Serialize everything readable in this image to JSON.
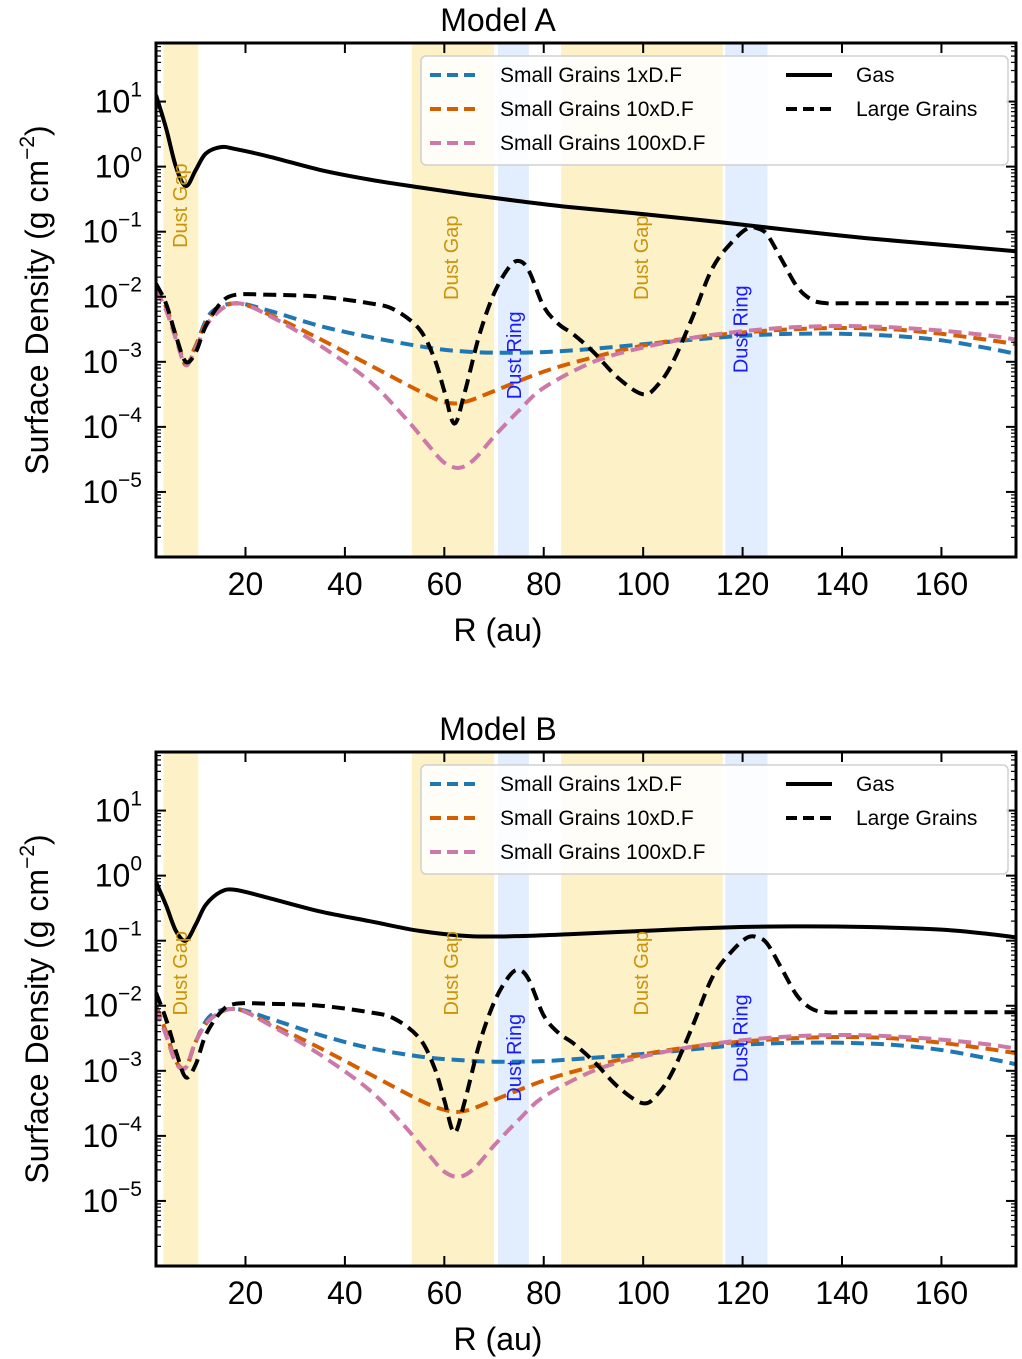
{
  "chart_data": [
    {
      "type": "line",
      "title": "Model A",
      "xlabel": "R (au)",
      "ylabel": "Surface Density (g cm$^{-2}$)",
      "ylabel_parts": {
        "main": "Surface Density (g cm",
        "exp": "−2",
        "close": ")"
      },
      "xlim": [
        2,
        175
      ],
      "ylim_log10": [
        -6.0,
        1.9
      ],
      "x_ticks": [
        20,
        40,
        60,
        80,
        100,
        120,
        140,
        160
      ],
      "y_ticks": [
        {
          "base": "10",
          "exp": "1",
          "log": 1
        },
        {
          "base": "10",
          "exp": "0",
          "log": 0
        },
        {
          "base": "10",
          "exp": "−1",
          "log": -1
        },
        {
          "base": "10",
          "exp": "−2",
          "log": -2
        },
        {
          "base": "10",
          "exp": "−3",
          "log": -3
        },
        {
          "base": "10",
          "exp": "−4",
          "log": -4
        },
        {
          "base": "10",
          "exp": "−5",
          "log": -5
        }
      ],
      "regions": [
        {
          "kind": "gap",
          "x0": 3.5,
          "x1": 10.5,
          "label": "Dust Gap",
          "label_x": 7,
          "label_log": -0.6,
          "color": "#fdf1c8"
        },
        {
          "kind": "gap",
          "x0": 53.5,
          "x1": 70.0,
          "label": "Dust Gap",
          "label_x": 61.5,
          "label_log": -1.4,
          "color": "#fdf1c8"
        },
        {
          "kind": "ring",
          "x0": 70.8,
          "x1": 77.0,
          "label": "Dust Ring",
          "label_x": 74.2,
          "label_log": -2.9,
          "color": "#e2eefd"
        },
        {
          "kind": "gap",
          "x0": 83.5,
          "x1": 116.0,
          "label": "Dust Gap",
          "label_x": 99.8,
          "label_log": -1.4,
          "color": "#fdf1c8"
        },
        {
          "kind": "ring",
          "x0": 116.5,
          "x1": 125.0,
          "label": "Dust Ring",
          "label_x": 119.8,
          "label_log": -2.5,
          "color": "#e2eefd"
        }
      ],
      "series": [
        {
          "name": "Small Grains 1xD.F",
          "color": "#1f77b4",
          "dash": "dashed",
          "x": [
            2,
            4,
            6,
            8,
            10,
            13,
            18,
            25,
            35,
            45,
            55,
            62,
            70,
            80,
            90,
            100,
            110,
            120,
            130,
            140,
            150,
            160,
            170,
            175
          ],
          "log_y": [
            -1.85,
            -2.15,
            -2.6,
            -3.05,
            -2.75,
            -2.25,
            -2.1,
            -2.22,
            -2.45,
            -2.62,
            -2.76,
            -2.83,
            -2.86,
            -2.85,
            -2.8,
            -2.73,
            -2.66,
            -2.6,
            -2.57,
            -2.57,
            -2.6,
            -2.67,
            -2.8,
            -2.88
          ]
        },
        {
          "name": "Small Grains 10xD.F",
          "color": "#d55e00",
          "dash": "dashed",
          "x": [
            2,
            4,
            6,
            8,
            10,
            13,
            18,
            25,
            35,
            45,
            55,
            60,
            64,
            70,
            80,
            90,
            100,
            110,
            120,
            130,
            140,
            150,
            160,
            170,
            175
          ],
          "log_y": [
            -1.85,
            -2.15,
            -2.6,
            -3.05,
            -2.75,
            -2.3,
            -2.1,
            -2.28,
            -2.65,
            -3.05,
            -3.45,
            -3.62,
            -3.62,
            -3.45,
            -3.15,
            -2.93,
            -2.75,
            -2.63,
            -2.55,
            -2.5,
            -2.48,
            -2.5,
            -2.57,
            -2.67,
            -2.73
          ]
        },
        {
          "name": "Small Grains 100xD.F",
          "color": "#cc79a7",
          "dash": "dashed",
          "x": [
            2,
            4,
            6,
            8,
            10,
            13,
            18,
            25,
            35,
            45,
            52,
            57,
            60,
            63,
            66,
            70,
            75,
            80,
            90,
            100,
            110,
            120,
            130,
            140,
            150,
            160,
            170,
            175
          ],
          "log_y": [
            -1.9,
            -2.2,
            -2.65,
            -3.05,
            -2.78,
            -2.35,
            -2.1,
            -2.3,
            -2.75,
            -3.3,
            -3.85,
            -4.3,
            -4.55,
            -4.63,
            -4.5,
            -4.15,
            -3.75,
            -3.4,
            -3.0,
            -2.78,
            -2.63,
            -2.53,
            -2.47,
            -2.45,
            -2.47,
            -2.52,
            -2.6,
            -2.66
          ]
        },
        {
          "name": "Gas",
          "color": "#000000",
          "dash": "solid",
          "x": [
            2,
            4,
            6,
            8,
            10,
            12,
            15,
            18,
            25,
            35,
            45,
            55,
            65,
            75,
            85,
            100,
            115,
            130,
            145,
            160,
            175
          ],
          "log_y": [
            1.1,
            0.6,
            0.0,
            -0.3,
            -0.05,
            0.2,
            0.3,
            0.27,
            0.15,
            -0.05,
            -0.2,
            -0.32,
            -0.43,
            -0.53,
            -0.62,
            -0.73,
            -0.85,
            -0.98,
            -1.1,
            -1.2,
            -1.3
          ]
        },
        {
          "name": "Large Grains",
          "color": "#000000",
          "dash": "dashed",
          "x": [
            2,
            4,
            6,
            8,
            10,
            12,
            15,
            18,
            25,
            35,
            45,
            50,
            55,
            58,
            60,
            62,
            64,
            67,
            70,
            73,
            75,
            77,
            80,
            83,
            86,
            90,
            95,
            100,
            103,
            106,
            110,
            114,
            118,
            121,
            123,
            125,
            128,
            131,
            134,
            137,
            140,
            150,
            160,
            175
          ],
          "log_y": [
            -1.8,
            -2.1,
            -2.6,
            -3.0,
            -2.85,
            -2.45,
            -2.1,
            -1.97,
            -1.97,
            -2.0,
            -2.1,
            -2.2,
            -2.5,
            -2.95,
            -3.45,
            -3.95,
            -3.5,
            -2.6,
            -1.95,
            -1.55,
            -1.45,
            -1.6,
            -2.15,
            -2.42,
            -2.58,
            -2.85,
            -3.25,
            -3.5,
            -3.35,
            -3.0,
            -2.3,
            -1.55,
            -1.15,
            -0.95,
            -0.95,
            -1.05,
            -1.45,
            -1.85,
            -2.05,
            -2.1,
            -2.1,
            -2.1,
            -2.1,
            -2.1
          ]
        }
      ],
      "legend_columns": [
        [
          "Small Grains 1xD.F",
          "Small Grains 10xD.F",
          "Small Grains 100xD.F"
        ],
        [
          "Gas",
          "Large Grains"
        ]
      ]
    },
    {
      "type": "line",
      "title": "Model B",
      "xlabel": "R (au)",
      "ylabel": "Surface Density (g cm$^{-2}$)",
      "ylabel_parts": {
        "main": "Surface Density (g cm",
        "exp": "−2",
        "close": ")"
      },
      "xlim": [
        2,
        175
      ],
      "ylim_log10": [
        -6.0,
        1.9
      ],
      "x_ticks": [
        20,
        40,
        60,
        80,
        100,
        120,
        140,
        160
      ],
      "y_ticks": [
        {
          "base": "10",
          "exp": "1",
          "log": 1
        },
        {
          "base": "10",
          "exp": "0",
          "log": 0
        },
        {
          "base": "10",
          "exp": "−1",
          "log": -1
        },
        {
          "base": "10",
          "exp": "−2",
          "log": -2
        },
        {
          "base": "10",
          "exp": "−3",
          "log": -3
        },
        {
          "base": "10",
          "exp": "−4",
          "log": -4
        },
        {
          "base": "10",
          "exp": "−5",
          "log": -5
        }
      ],
      "regions": [
        {
          "kind": "gap",
          "x0": 3.5,
          "x1": 10.5,
          "label": "Dust Gap",
          "label_x": 7,
          "label_log": -1.5,
          "color": "#fdf1c8"
        },
        {
          "kind": "gap",
          "x0": 53.5,
          "x1": 70.0,
          "label": "Dust Gap",
          "label_x": 61.5,
          "label_log": -1.5,
          "color": "#fdf1c8"
        },
        {
          "kind": "ring",
          "x0": 70.8,
          "x1": 77.0,
          "label": "Dust Ring",
          "label_x": 74.2,
          "label_log": -2.8,
          "color": "#e2eefd"
        },
        {
          "kind": "gap",
          "x0": 83.5,
          "x1": 116.0,
          "label": "Dust Gap",
          "label_x": 99.8,
          "label_log": -1.5,
          "color": "#fdf1c8"
        },
        {
          "kind": "ring",
          "x0": 116.5,
          "x1": 125.0,
          "label": "Dust Ring",
          "label_x": 119.8,
          "label_log": -2.5,
          "color": "#e2eefd"
        }
      ],
      "series": [
        {
          "name": "Small Grains 1xD.F",
          "color": "#1f77b4",
          "dash": "dashed",
          "x": [
            2,
            4,
            6,
            8,
            10,
            13,
            18,
            25,
            35,
            45,
            55,
            62,
            70,
            80,
            90,
            100,
            110,
            120,
            130,
            140,
            150,
            160,
            170,
            175
          ],
          "log_y": [
            -2.0,
            -2.4,
            -2.85,
            -2.95,
            -2.55,
            -2.15,
            -2.05,
            -2.2,
            -2.45,
            -2.65,
            -2.78,
            -2.83,
            -2.86,
            -2.85,
            -2.8,
            -2.74,
            -2.67,
            -2.6,
            -2.57,
            -2.57,
            -2.6,
            -2.68,
            -2.82,
            -2.9
          ]
        },
        {
          "name": "Small Grains 10xD.F",
          "color": "#d55e00",
          "dash": "dashed",
          "x": [
            2,
            4,
            6,
            8,
            10,
            13,
            18,
            25,
            35,
            45,
            55,
            60,
            64,
            70,
            80,
            90,
            100,
            110,
            120,
            130,
            140,
            150,
            160,
            170,
            175
          ],
          "log_y": [
            -2.0,
            -2.4,
            -2.85,
            -2.95,
            -2.55,
            -2.2,
            -2.05,
            -2.28,
            -2.65,
            -3.05,
            -3.45,
            -3.6,
            -3.62,
            -3.45,
            -3.15,
            -2.93,
            -2.75,
            -2.63,
            -2.55,
            -2.5,
            -2.48,
            -2.5,
            -2.57,
            -2.67,
            -2.73
          ]
        },
        {
          "name": "Small Grains 100xD.F",
          "color": "#cc79a7",
          "dash": "dashed",
          "x": [
            2,
            4,
            6,
            8,
            10,
            13,
            18,
            25,
            35,
            45,
            52,
            57,
            60,
            63,
            66,
            70,
            75,
            80,
            90,
            100,
            110,
            120,
            130,
            140,
            150,
            160,
            170,
            175
          ],
          "log_y": [
            -2.05,
            -2.45,
            -2.88,
            -2.95,
            -2.55,
            -2.2,
            -2.05,
            -2.3,
            -2.75,
            -3.3,
            -3.85,
            -4.3,
            -4.55,
            -4.63,
            -4.5,
            -4.15,
            -3.75,
            -3.4,
            -3.0,
            -2.78,
            -2.63,
            -2.53,
            -2.47,
            -2.45,
            -2.47,
            -2.52,
            -2.6,
            -2.66
          ]
        },
        {
          "name": "Gas",
          "color": "#000000",
          "dash": "solid",
          "x": [
            2,
            4,
            6,
            8,
            10,
            12,
            15,
            18,
            25,
            35,
            45,
            55,
            65,
            75,
            85,
            100,
            115,
            130,
            145,
            160,
            170,
            175
          ],
          "log_y": [
            -0.1,
            -0.45,
            -0.85,
            -1.0,
            -0.75,
            -0.45,
            -0.25,
            -0.22,
            -0.35,
            -0.55,
            -0.7,
            -0.85,
            -0.93,
            -0.93,
            -0.9,
            -0.85,
            -0.8,
            -0.78,
            -0.79,
            -0.83,
            -0.9,
            -0.95
          ]
        },
        {
          "name": "Large Grains",
          "color": "#000000",
          "dash": "dashed",
          "x": [
            2,
            4,
            6,
            8,
            10,
            12,
            15,
            18,
            25,
            35,
            45,
            50,
            55,
            58,
            60,
            62,
            64,
            67,
            70,
            73,
            75,
            77,
            80,
            83,
            86,
            90,
            95,
            100,
            103,
            106,
            110,
            114,
            118,
            121,
            123,
            125,
            128,
            131,
            134,
            137,
            140,
            150,
            160,
            175
          ],
          "log_y": [
            -1.8,
            -2.2,
            -2.7,
            -3.1,
            -2.9,
            -2.45,
            -2.1,
            -1.97,
            -1.97,
            -2.0,
            -2.1,
            -2.2,
            -2.5,
            -2.95,
            -3.45,
            -3.95,
            -3.5,
            -2.6,
            -1.95,
            -1.55,
            -1.45,
            -1.6,
            -2.15,
            -2.42,
            -2.58,
            -2.85,
            -3.25,
            -3.5,
            -3.35,
            -3.0,
            -2.3,
            -1.55,
            -1.15,
            -0.95,
            -0.95,
            -1.05,
            -1.45,
            -1.85,
            -2.05,
            -2.1,
            -2.1,
            -2.1,
            -2.1,
            -2.1
          ]
        }
      ],
      "legend_columns": [
        [
          "Small Grains 1xD.F",
          "Small Grains 10xD.F",
          "Small Grains 100xD.F"
        ],
        [
          "Gas",
          "Large Grains"
        ]
      ]
    }
  ]
}
